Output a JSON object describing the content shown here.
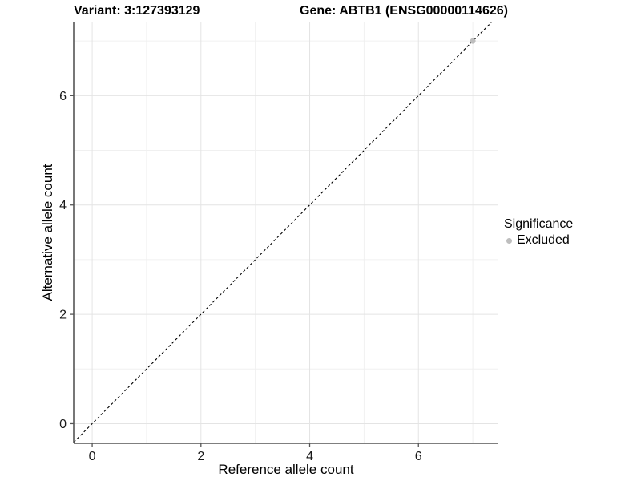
{
  "header": {
    "variant_title": "Variant: 3:127393129",
    "gene_title": "Gene: ABTB1 (ENSG00000114626)"
  },
  "axes": {
    "x": {
      "title": "Reference allele count"
    },
    "y": {
      "title": "Alternative allele count"
    }
  },
  "legend": {
    "title": "Significance",
    "items": [
      {
        "label": "Excluded",
        "color": "#bebebe"
      }
    ]
  },
  "colors": {
    "background": "#ffffff",
    "axis_line": "#555555",
    "tick_label": "#1a1a1a",
    "grid_major": "#e4e4e4",
    "grid_minor": "#f0f0f0",
    "reference_line": "#000000",
    "excluded_point": "#bebebe"
  },
  "chart_data": {
    "type": "scatter",
    "title": "Variant: 3:127393129 / Gene: ABTB1 (ENSG00000114626)",
    "xlabel": "Reference allele count",
    "ylabel": "Alternative allele count",
    "xlim": [
      -0.34,
      7.47
    ],
    "ylim": [
      -0.36,
      7.34
    ],
    "x_breaks": [
      0,
      2,
      4,
      6
    ],
    "y_breaks": [
      0,
      2,
      4,
      6
    ],
    "x_minor_breaks": [
      1,
      3,
      5,
      7
    ],
    "y_minor_breaks": [
      1,
      3,
      5,
      7
    ],
    "grid": true,
    "legend_position": "right",
    "series": [
      {
        "name": "Excluded",
        "color": "#bebebe",
        "points": [
          {
            "x": 7,
            "y": 7
          }
        ]
      }
    ],
    "reference_line": {
      "slope": 1,
      "intercept": 0,
      "style": "dashed",
      "color": "#000000"
    }
  }
}
